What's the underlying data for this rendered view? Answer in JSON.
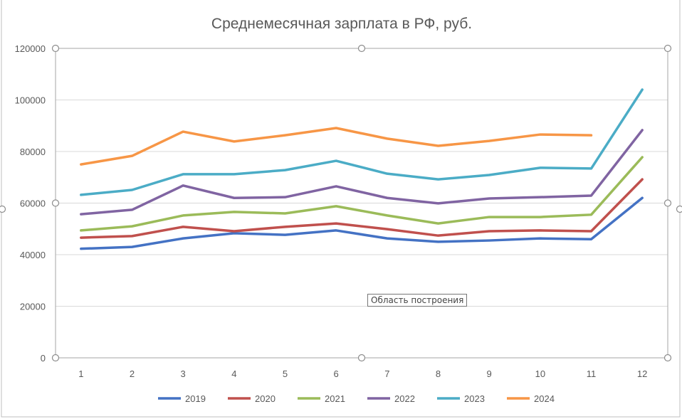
{
  "tooltip": "Область построения",
  "chart_data": {
    "type": "line",
    "title": "Среднемесячная зарплата в РФ, руб.",
    "xlabel": "",
    "ylabel": "",
    "categories": [
      "1",
      "2",
      "3",
      "4",
      "5",
      "6",
      "7",
      "8",
      "9",
      "10",
      "11",
      "12"
    ],
    "ylim": [
      0,
      120000
    ],
    "yticks": [
      "0",
      "20000",
      "40000",
      "60000",
      "80000",
      "100000",
      "120000"
    ],
    "grid": true,
    "legend": "bottom",
    "series": [
      {
        "name": "2019",
        "color": "#4472C4",
        "values": [
          42300,
          43000,
          46300,
          48300,
          47700,
          49400,
          46300,
          45000,
          45500,
          46300,
          46000,
          62000
        ]
      },
      {
        "name": "2020",
        "color": "#C0504D",
        "values": [
          46600,
          47200,
          50800,
          49100,
          50800,
          52100,
          49900,
          47400,
          49100,
          49400,
          49100,
          69200
        ]
      },
      {
        "name": "2021",
        "color": "#9BBB59",
        "values": [
          49400,
          51000,
          55200,
          56600,
          56000,
          58800,
          55200,
          52100,
          54600,
          54600,
          55500,
          77800
        ]
      },
      {
        "name": "2022",
        "color": "#8064A2",
        "values": [
          55700,
          57400,
          66800,
          62000,
          62300,
          66500,
          62000,
          59900,
          61800,
          62300,
          62900,
          88300
        ]
      },
      {
        "name": "2023",
        "color": "#4BACC6",
        "values": [
          63200,
          65100,
          71200,
          71200,
          72800,
          76400,
          71400,
          69200,
          70900,
          73700,
          73400,
          104000
        ]
      },
      {
        "name": "2024",
        "color": "#F79646",
        "values": [
          75000,
          78300,
          87700,
          83900,
          86300,
          89100,
          85000,
          82200,
          84100,
          86600,
          86300,
          null
        ]
      }
    ]
  }
}
